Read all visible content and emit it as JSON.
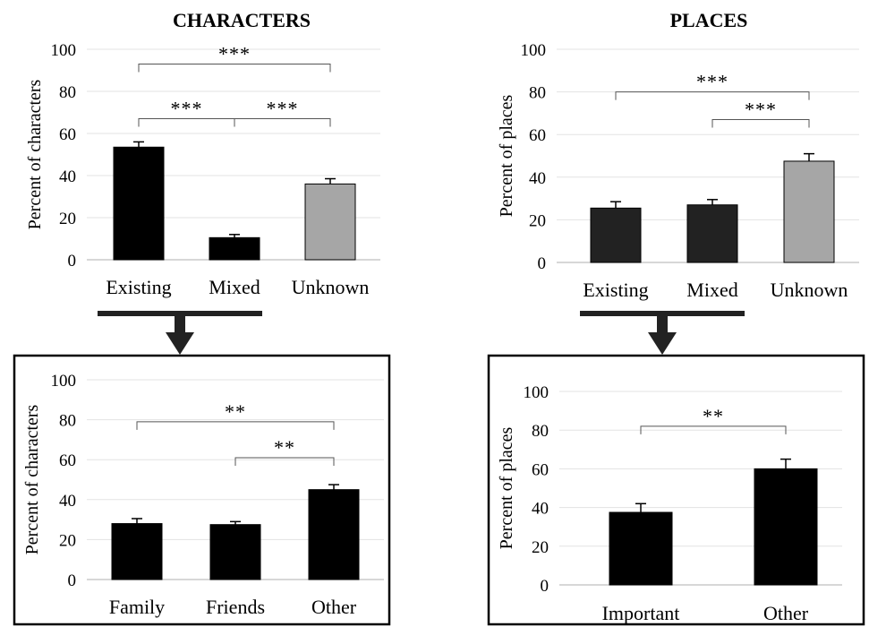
{
  "chart_data": [
    {
      "type": "bar",
      "title": "CHARACTERS",
      "ylabel": "Percent of characters",
      "categories": [
        "Existing",
        "Mixed",
        "Unknown"
      ],
      "values": [
        53.5,
        10.5,
        36
      ],
      "errors": [
        2.5,
        1.5,
        2.5
      ],
      "bar_colors": [
        "#000000",
        "#000000",
        "#a6a6a6"
      ],
      "ylim": [
        0,
        100
      ],
      "yticks": [
        "0",
        "20",
        "40",
        "60",
        "80",
        "100"
      ],
      "grid": true,
      "boxed": false,
      "significance": [
        {
          "from": 0,
          "to": 2,
          "level": 93,
          "label": "***"
        },
        {
          "from": 0,
          "to": 1,
          "level": 67,
          "label": "***"
        },
        {
          "from": 1,
          "to": 2,
          "level": 67,
          "label": "***"
        }
      ]
    },
    {
      "type": "bar",
      "title": "PLACES",
      "ylabel": "Percent of places",
      "categories": [
        "Existing",
        "Mixed",
        "Unknown"
      ],
      "values": [
        25.5,
        27,
        47.5
      ],
      "errors": [
        3,
        2.5,
        3.5
      ],
      "bar_colors": [
        "#222222",
        "#222222",
        "#a6a6a6"
      ],
      "ylim": [
        0,
        100
      ],
      "yticks": [
        "0",
        "20",
        "40",
        "60",
        "80",
        "100"
      ],
      "grid": true,
      "boxed": false,
      "significance": [
        {
          "from": 0,
          "to": 2,
          "level": 80,
          "label": "***"
        },
        {
          "from": 1,
          "to": 2,
          "level": 67,
          "label": "***"
        }
      ]
    },
    {
      "type": "bar",
      "title": "",
      "ylabel": "Percent of characters",
      "categories": [
        "Family",
        "Friends",
        "Other"
      ],
      "values": [
        28,
        27.5,
        45
      ],
      "errors": [
        2.5,
        1.5,
        2.5
      ],
      "bar_colors": [
        "#000000",
        "#000000",
        "#000000"
      ],
      "ylim": [
        0,
        100
      ],
      "yticks": [
        "0",
        "20",
        "40",
        "60",
        "80",
        "100"
      ],
      "grid": true,
      "boxed": true,
      "significance": [
        {
          "from": 0,
          "to": 2,
          "level": 79,
          "label": "**"
        },
        {
          "from": 1,
          "to": 2,
          "level": 61,
          "label": "**"
        }
      ]
    },
    {
      "type": "bar",
      "title": "",
      "ylabel": "Percent of places",
      "categories": [
        "Important",
        "Other"
      ],
      "values": [
        37.5,
        60
      ],
      "errors": [
        4.5,
        5
      ],
      "bar_colors": [
        "#000000",
        "#000000"
      ],
      "ylim": [
        0,
        100
      ],
      "yticks": [
        "0",
        "20",
        "40",
        "60",
        "80",
        "100"
      ],
      "grid": true,
      "boxed": true,
      "significance": [
        {
          "from": 0,
          "to": 1,
          "level": 82,
          "label": "**"
        }
      ]
    }
  ]
}
